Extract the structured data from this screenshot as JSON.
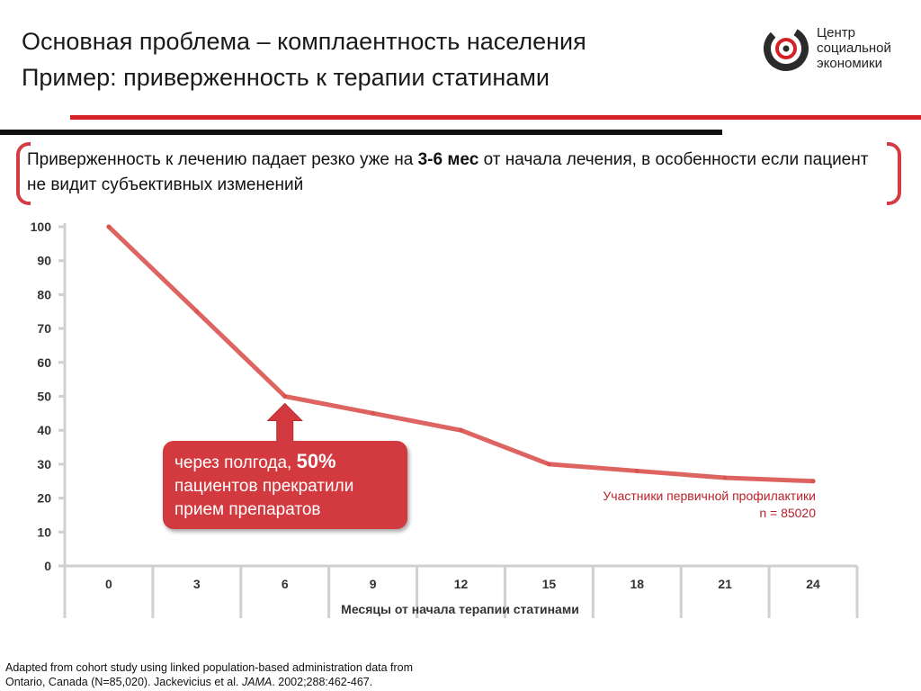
{
  "header": {
    "title_line1": "Основная проблема – комплаентность населения",
    "title_line2": "Пример: приверженность к терапии статинами"
  },
  "logo": {
    "line1": "Центр",
    "line2": "социальной",
    "line3": "экономики",
    "icon": "ring-logo-icon",
    "colors": {
      "ring": "#2b2b2b",
      "accent": "#d42027"
    }
  },
  "lead": {
    "before": "Приверженность к лечению падает резко уже на ",
    "bold": "3-6 мес",
    "after": " от начала лечения, в особенности если пациент не видит субъективных изменений"
  },
  "callout": {
    "before": "через полгода, ",
    "bold": "50%",
    "line2": "пациентов прекратили",
    "line3": "прием препаратов"
  },
  "note": {
    "line1": "Участники первичной профилактики",
    "line2": "n = 85020"
  },
  "source": {
    "line1": "Adapted from cohort study using linked population-based administration data from",
    "line2_before": "Ontario, Canada (N=85,020). Jackevicius et al. ",
    "journal": "JAMA",
    "line2_after": ". 2002;288:462-467."
  },
  "chart_data": {
    "type": "line",
    "categories": [
      "0",
      "3",
      "6",
      "9",
      "12",
      "15",
      "18",
      "21",
      "24"
    ],
    "series": [
      {
        "values": [
          100,
          75,
          50,
          45,
          40,
          30,
          28,
          26,
          25
        ]
      }
    ],
    "xlabel": "Месяцы от начала терапии статинами",
    "ylabel": "",
    "ylim": [
      0,
      100
    ],
    "yticks": [
      0,
      10,
      20,
      30,
      40,
      50,
      60,
      70,
      80,
      90,
      100
    ],
    "grid": false,
    "color": "#d9534f"
  }
}
